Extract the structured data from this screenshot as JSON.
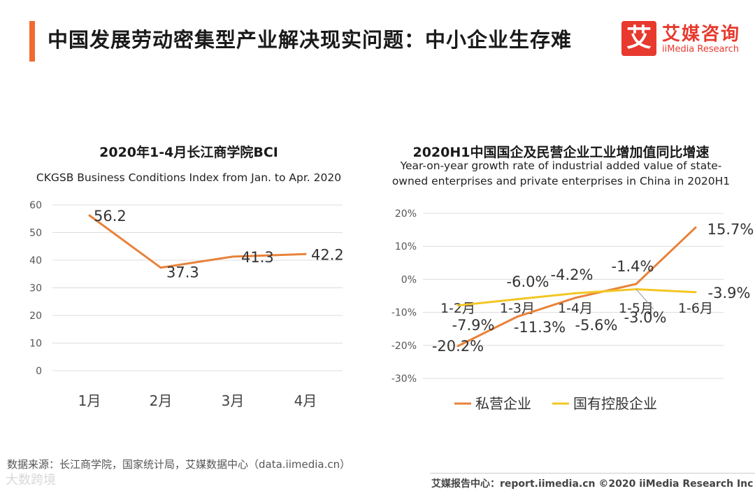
{
  "header": {
    "title": "中国发展劳动密集型产业解决现实问题：中小企业生存难",
    "accent_color": "#f26a30"
  },
  "logo": {
    "mark": "艾",
    "cn": "艾媒咨询",
    "en": "iiMedia Research",
    "color": "#e8392e"
  },
  "chart_data": [
    {
      "type": "line",
      "title": "2020年1-4月长江商学院BCI",
      "subtitle": "CKGSB Business Conditions Index from Jan. to Apr. 2020",
      "categories": [
        "1月",
        "2月",
        "3月",
        "4月"
      ],
      "series": [
        {
          "name": "BCI",
          "color": "#e8823a",
          "values": [
            56.2,
            37.3,
            41.3,
            42.2
          ],
          "labels": [
            "56.2",
            "37.3",
            "41.3",
            "42.2"
          ]
        }
      ],
      "yticks": [
        "60",
        "50",
        "40",
        "30",
        "20",
        "10",
        "0"
      ],
      "ylim": [
        0,
        60
      ],
      "grid": true
    },
    {
      "type": "line",
      "title": "2020H1中国国企及民营企业工业增加值同比增速",
      "subtitle_lines": [
        "Year-on-year growth rate of industrial added value of state-",
        "owned enterprises and private enterprises in China in 2020H1"
      ],
      "categories": [
        "1-2月",
        "1-3月",
        "1-4月",
        "1-5月",
        "1-6月"
      ],
      "series": [
        {
          "name": "私营企业",
          "color": "#e8823a",
          "values": [
            -20.2,
            -11.3,
            -5.6,
            -1.4,
            15.7
          ],
          "labels": [
            "-20.2%",
            "-11.3%",
            "-5.6%",
            "-1.4%",
            "15.7%"
          ]
        },
        {
          "name": "国有控股企业",
          "color": "#f3c623",
          "values": [
            -7.9,
            -6.0,
            -4.2,
            -3.0,
            -3.9
          ],
          "labels": [
            "-7.9%",
            "-6.0%",
            "-4.2%",
            "-3.0%",
            "-3.9%"
          ]
        }
      ],
      "yticks": [
        "20%",
        "10%",
        "0%",
        "-10%",
        "-20%",
        "-30%"
      ],
      "ylim": [
        -30,
        20
      ],
      "grid": true,
      "legend": "bottom"
    }
  ],
  "footer": {
    "source": "数据来源：长江商学院，国家统计局，艾媒数据中心（data.iimedia.cn）",
    "credit": "艾媒报告中心：report.iimedia.cn  ©2020  iiMedia Research  Inc",
    "watermark": "大数跨境"
  }
}
